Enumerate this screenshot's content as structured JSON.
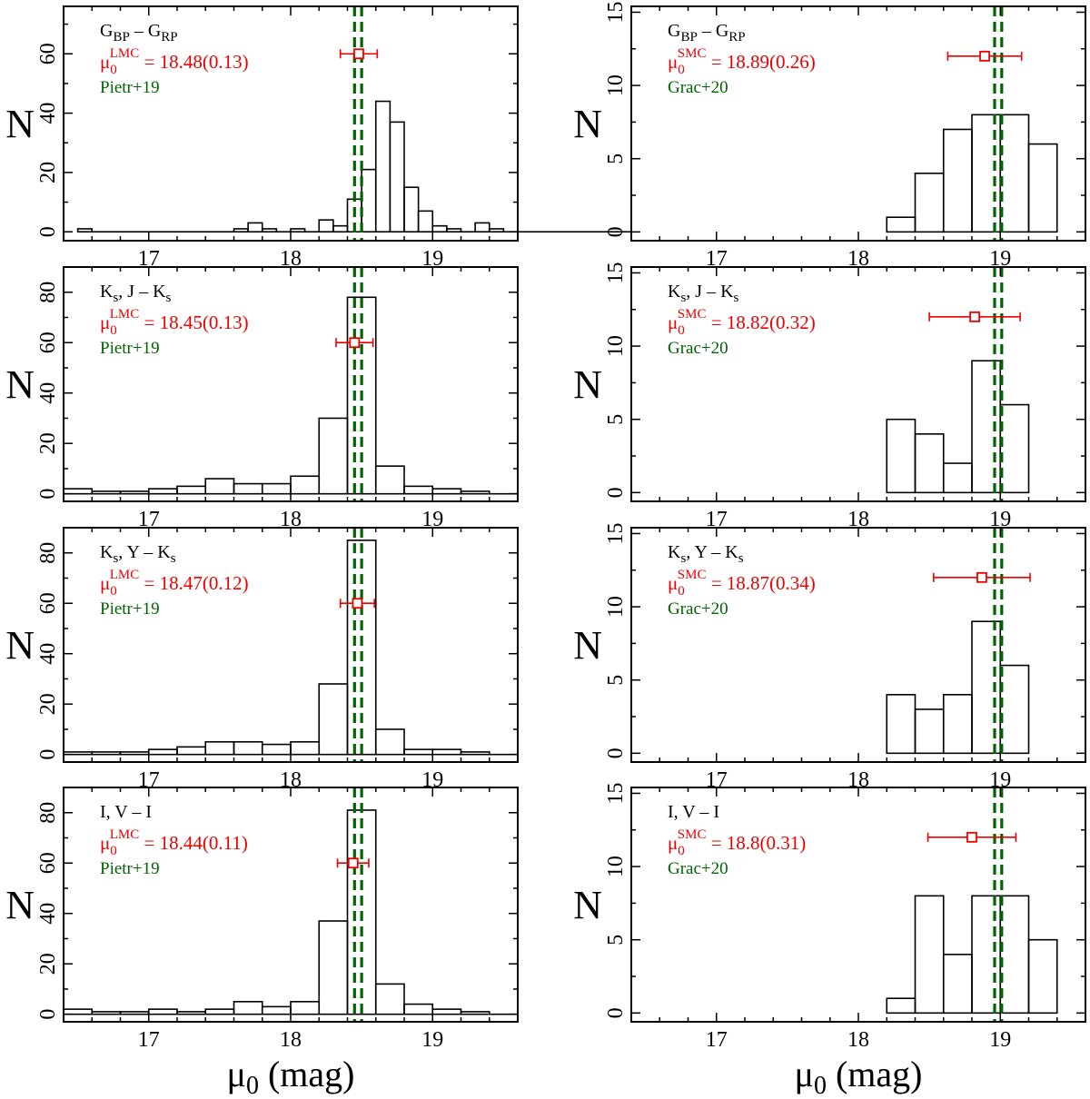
{
  "figure": {
    "xlabel_main": "μ",
    "xlabel_sub": "0",
    "xlabel_unit": "(mag)",
    "panel_ylabel": "N",
    "colors": {
      "frame": "#000000",
      "hist": "#000000",
      "estimate": "#ee0000",
      "reference": "#006400"
    }
  },
  "chart_data": [
    {
      "type": "bar",
      "galaxy": "LMC",
      "band": "G",
      "color_pre": "G",
      "color_sub1": "BP",
      "color_mid": " – G",
      "color_sub2": "RP",
      "mu_label": "μ",
      "mu_sub": "0",
      "mu_sup": "LMC",
      "mu_eq": "= 18.48(0.13)",
      "mu": 18.48,
      "mu_err": 0.13,
      "ref_label": "Pietr+19",
      "ref_lines": [
        18.45,
        18.5
      ],
      "marker_y": 60,
      "xlim": [
        16.4,
        19.6
      ],
      "ylim": [
        -3,
        76
      ],
      "yticks": [
        0,
        20,
        40,
        60
      ],
      "xticks": [
        17,
        18,
        19
      ],
      "bin_width": 0.1,
      "bin_start": 16.5,
      "values": [
        1,
        0,
        0,
        0,
        0,
        0,
        0,
        0,
        0,
        0,
        0,
        1,
        3,
        1,
        0,
        1,
        0,
        4,
        2,
        11,
        21,
        44,
        37,
        15,
        7,
        2,
        1,
        0,
        3,
        1,
        0,
        0,
        0,
        0,
        0,
        0,
        0,
        0,
        0
      ]
    },
    {
      "type": "bar",
      "galaxy": "SMC",
      "band": "G",
      "color_pre": "G",
      "color_sub1": "BP",
      "color_mid": " – G",
      "color_sub2": "RP",
      "mu_label": "μ",
      "mu_sub": "0",
      "mu_sup": "SMC",
      "mu_eq": "= 18.89(0.26)",
      "mu": 18.89,
      "mu_err": 0.26,
      "ref_label": "Grac+20",
      "ref_lines": [
        18.96,
        19.01
      ],
      "marker_y": 12,
      "xlim": [
        16.4,
        19.6
      ],
      "ylim": [
        -0.6,
        15.4
      ],
      "yticks": [
        0,
        5,
        10,
        15
      ],
      "xticks": [
        17,
        18,
        19
      ],
      "bin_width": 0.2,
      "bin_start": 18.2,
      "values": [
        1,
        4,
        7,
        8,
        8,
        6
      ]
    },
    {
      "type": "bar",
      "galaxy": "LMC",
      "band": "Ks",
      "color_pre": "K",
      "color_sub1": "s",
      "color_mid": ", J – K",
      "color_sub2": "s",
      "mu_label": "μ",
      "mu_sub": "0",
      "mu_sup": "LMC",
      "mu_eq": "= 18.45(0.13)",
      "mu": 18.45,
      "mu_err": 0.13,
      "ref_label": "Pietr+19",
      "ref_lines": [
        18.45,
        18.5
      ],
      "marker_y": 60,
      "xlim": [
        16.4,
        19.6
      ],
      "ylim": [
        -3,
        90
      ],
      "yticks": [
        0,
        20,
        40,
        60,
        80
      ],
      "xticks": [
        17,
        18,
        19
      ],
      "bin_width": 0.2,
      "bin_start": 16.4,
      "values": [
        2,
        1,
        1,
        2,
        3,
        6,
        4,
        4,
        7,
        30,
        78,
        11,
        3,
        2,
        1,
        0
      ]
    },
    {
      "type": "bar",
      "galaxy": "SMC",
      "band": "Ks",
      "color_pre": "K",
      "color_sub1": "s",
      "color_mid": ", J – K",
      "color_sub2": "s",
      "mu_label": "μ",
      "mu_sub": "0",
      "mu_sup": "SMC",
      "mu_eq": "= 18.82(0.32)",
      "mu": 18.82,
      "mu_err": 0.32,
      "ref_label": "Grac+20",
      "ref_lines": [
        18.96,
        19.01
      ],
      "marker_y": 12,
      "xlim": [
        16.4,
        19.6
      ],
      "ylim": [
        -0.6,
        15.4
      ],
      "yticks": [
        0,
        5,
        10,
        15
      ],
      "xticks": [
        17,
        18,
        19
      ],
      "bin_width": 0.2,
      "bin_start": 18.2,
      "values": [
        5,
        4,
        2,
        9,
        6
      ]
    },
    {
      "type": "bar",
      "galaxy": "LMC",
      "band": "Ks",
      "color_pre": "K",
      "color_sub1": "s",
      "color_mid": ", Y – K",
      "color_sub2": "s",
      "mu_label": "μ",
      "mu_sub": "0",
      "mu_sup": "LMC",
      "mu_eq": "= 18.47(0.12)",
      "mu": 18.47,
      "mu_err": 0.12,
      "ref_label": "Pietr+19",
      "ref_lines": [
        18.45,
        18.5
      ],
      "marker_y": 60,
      "xlim": [
        16.4,
        19.6
      ],
      "ylim": [
        -3,
        90
      ],
      "yticks": [
        0,
        20,
        40,
        60,
        80
      ],
      "xticks": [
        17,
        18,
        19
      ],
      "bin_width": 0.2,
      "bin_start": 16.4,
      "values": [
        1,
        1,
        1,
        2,
        3,
        5,
        5,
        4,
        5,
        28,
        85,
        10,
        2,
        2,
        1,
        0
      ]
    },
    {
      "type": "bar",
      "galaxy": "SMC",
      "band": "Ks",
      "color_pre": "K",
      "color_sub1": "s",
      "color_mid": ", Y – K",
      "color_sub2": "s",
      "mu_label": "μ",
      "mu_sub": "0",
      "mu_sup": "SMC",
      "mu_eq": "= 18.87(0.34)",
      "mu": 18.87,
      "mu_err": 0.34,
      "ref_label": "Grac+20",
      "ref_lines": [
        18.96,
        19.01
      ],
      "marker_y": 12,
      "xlim": [
        16.4,
        19.6
      ],
      "ylim": [
        -0.6,
        15.4
      ],
      "yticks": [
        0,
        5,
        10,
        15
      ],
      "xticks": [
        17,
        18,
        19
      ],
      "bin_width": 0.2,
      "bin_start": 18.2,
      "values": [
        4,
        3,
        4,
        9,
        6
      ]
    },
    {
      "type": "bar",
      "galaxy": "LMC",
      "band": "I",
      "color_pre": "I, V – I",
      "color_sub1": "",
      "color_mid": "",
      "color_sub2": "",
      "mu_label": "μ",
      "mu_sub": "0",
      "mu_sup": "LMC",
      "mu_eq": "= 18.44(0.11)",
      "mu": 18.44,
      "mu_err": 0.11,
      "ref_label": "Pietr+19",
      "ref_lines": [
        18.45,
        18.5
      ],
      "marker_y": 60,
      "xlim": [
        16.4,
        19.6
      ],
      "ylim": [
        -3,
        90
      ],
      "yticks": [
        0,
        20,
        40,
        60,
        80
      ],
      "xticks": [
        17,
        18,
        19
      ],
      "bin_width": 0.2,
      "bin_start": 16.4,
      "values": [
        2,
        1,
        1,
        2,
        1,
        2,
        5,
        3,
        5,
        37,
        81,
        12,
        4,
        2,
        1,
        0
      ]
    },
    {
      "type": "bar",
      "galaxy": "SMC",
      "band": "I",
      "color_pre": "I, V – I",
      "color_sub1": "",
      "color_mid": "",
      "color_sub2": "",
      "mu_label": "μ",
      "mu_sub": "0",
      "mu_sup": "SMC",
      "mu_eq": "= 18.8(0.31)",
      "mu": 18.8,
      "mu_err": 0.31,
      "ref_label": "Grac+20",
      "ref_lines": [
        18.96,
        19.01
      ],
      "marker_y": 12,
      "xlim": [
        16.4,
        19.6
      ],
      "ylim": [
        -0.6,
        15.4
      ],
      "yticks": [
        0,
        5,
        10,
        15
      ],
      "xticks": [
        17,
        18,
        19
      ],
      "bin_width": 0.2,
      "bin_start": 18.2,
      "values": [
        1,
        8,
        4,
        8,
        8,
        5
      ]
    }
  ]
}
